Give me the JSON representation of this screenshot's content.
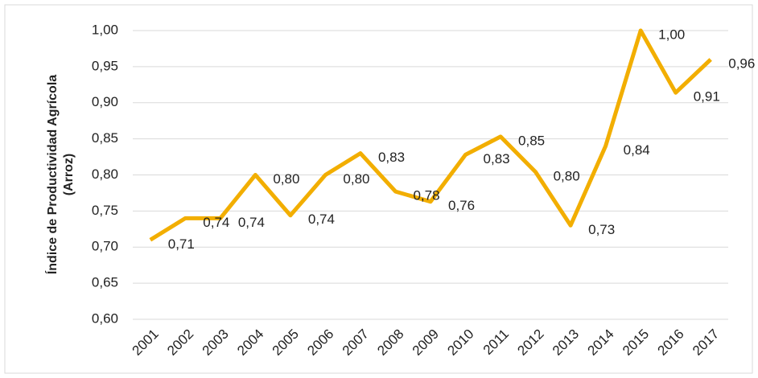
{
  "chart_data": {
    "type": "line",
    "ylabel": [
      "Índice de Productividad Agrícola",
      "(Arroz)"
    ],
    "categories": [
      "2001",
      "2002",
      "2003",
      "2004",
      "2005",
      "2006",
      "2007",
      "2008",
      "2009",
      "2010",
      "2011",
      "2012",
      "2013",
      "2014",
      "2015",
      "2016",
      "2017"
    ],
    "values": [
      0.71,
      0.74,
      0.74,
      0.8,
      0.744,
      0.8,
      0.83,
      0.777,
      0.763,
      0.828,
      0.853,
      0.804,
      0.73,
      0.84,
      1.0,
      0.914,
      0.96
    ],
    "value_labels": [
      "0,71",
      "0,74",
      "0,74",
      "0,80",
      "0,74",
      "0,80",
      "0,83",
      "0,78",
      "0,76",
      "0,83",
      "0,85",
      "0,80",
      "0,73",
      "0,84",
      "1,00",
      "0,91",
      "0,96"
    ],
    "color": "#f2ae00",
    "ylim": [
      0.6,
      1.0
    ],
    "yticks": [
      {
        "value": 0.6,
        "label": "0,60"
      },
      {
        "value": 0.65,
        "label": "0,65"
      },
      {
        "value": 0.7,
        "label": "0,70"
      },
      {
        "value": 0.75,
        "label": "0,75"
      },
      {
        "value": 0.8,
        "label": "0,80"
      },
      {
        "value": 0.85,
        "label": "0,85"
      },
      {
        "value": 0.9,
        "label": "0,90"
      },
      {
        "value": 0.95,
        "label": "0,95"
      },
      {
        "value": 1.0,
        "label": "1,00"
      }
    ],
    "grid": true
  }
}
